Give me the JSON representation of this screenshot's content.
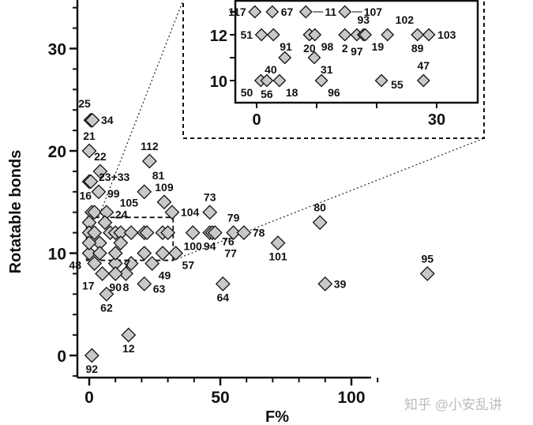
{
  "chart_data": {
    "type": "scatter",
    "xlabel": "F%",
    "ylabel": "Rotatable bonds",
    "xlim": [
      -3,
      140
    ],
    "ylim": [
      -2.2,
      34.8
    ],
    "xticks": [
      "0",
      "50",
      "100"
    ],
    "xtick_values": [
      0,
      50,
      100
    ],
    "yticks": [
      "0",
      "10",
      "20",
      "30"
    ],
    "ytick_values": [
      0,
      10,
      20,
      30
    ],
    "marker": "diamond",
    "marker_color": "#c8c8c8",
    "points": [
      {
        "x": 0.6,
        "y": 23,
        "label": "25",
        "side": "above-left"
      },
      {
        "x": 1.2,
        "y": 23,
        "label": "34",
        "side": "right"
      },
      {
        "x": 0,
        "y": 20,
        "label": "21",
        "side": "above"
      },
      {
        "x": 4.2,
        "y": 18,
        "label": "22",
        "side": "above"
      },
      {
        "x": 23,
        "y": 19,
        "label": "112",
        "side": "above"
      },
      {
        "x": 0,
        "y": 17,
        "label": "23+33",
        "side": "right-far"
      },
      {
        "x": 0.6,
        "y": 17,
        "label": "",
        "side": ""
      },
      {
        "x": 3.6,
        "y": 16,
        "label": "99",
        "side": "right"
      },
      {
        "x": 21,
        "y": 16,
        "label": "81",
        "side": "above-right"
      },
      {
        "x": 28.6,
        "y": 15,
        "label": "109",
        "side": "above"
      },
      {
        "x": 31.6,
        "y": 14,
        "label": "104",
        "side": "right"
      },
      {
        "x": 46,
        "y": 14,
        "label": "73",
        "side": "above"
      },
      {
        "x": 1,
        "y": 14,
        "label": "16",
        "side": "above-left"
      },
      {
        "x": 2,
        "y": 14,
        "label": "105",
        "side": "above-right"
      },
      {
        "x": 6.6,
        "y": 14,
        "label": "24",
        "side": "right"
      },
      {
        "x": 39.5,
        "y": 12,
        "label": "100",
        "side": "below"
      },
      {
        "x": 46,
        "y": 12,
        "label": "94",
        "side": "below"
      },
      {
        "x": 47,
        "y": 12,
        "label": "76",
        "side": "below-right"
      },
      {
        "x": 48,
        "y": 12,
        "label": "77",
        "side": "below-far"
      },
      {
        "x": 55,
        "y": 12,
        "label": "79",
        "side": "above"
      },
      {
        "x": 59,
        "y": 12,
        "label": "78",
        "side": "right"
      },
      {
        "x": 72,
        "y": 11,
        "label": "101",
        "side": "below"
      },
      {
        "x": 88,
        "y": 13,
        "label": "80",
        "side": "above"
      },
      {
        "x": 129,
        "y": 8,
        "label": "95",
        "side": "above"
      },
      {
        "x": 90,
        "y": 7,
        "label": "39",
        "side": "right"
      },
      {
        "x": 51,
        "y": 7,
        "label": "64",
        "side": "below"
      },
      {
        "x": 33,
        "y": 10,
        "label": "57",
        "side": "below-right"
      },
      {
        "x": 24,
        "y": 9,
        "label": "49",
        "side": "below-right"
      },
      {
        "x": 21,
        "y": 7,
        "label": "63",
        "side": "right"
      },
      {
        "x": 10,
        "y": 9,
        "label": "7",
        "side": "right"
      },
      {
        "x": 14,
        "y": 8,
        "label": "8",
        "side": "below"
      },
      {
        "x": 10,
        "y": 8,
        "label": "90",
        "side": "below"
      },
      {
        "x": 5,
        "y": 8,
        "label": "17",
        "side": "below-left"
      },
      {
        "x": 6.6,
        "y": 6,
        "label": "62",
        "side": "below"
      },
      {
        "x": 15,
        "y": 2,
        "label": "12",
        "side": "below"
      },
      {
        "x": 1,
        "y": 0,
        "label": "92",
        "side": "below"
      },
      {
        "x": 0,
        "y": 10,
        "label": "48",
        "side": "below-left"
      },
      {
        "x": 0,
        "y": 13,
        "label": "",
        "side": ""
      },
      {
        "x": 0,
        "y": 12,
        "label": "",
        "side": ""
      },
      {
        "x": 2,
        "y": 12,
        "label": "",
        "side": ""
      },
      {
        "x": 4,
        "y": 11,
        "label": "",
        "side": ""
      },
      {
        "x": 6,
        "y": 13,
        "label": "",
        "side": ""
      },
      {
        "x": 8,
        "y": 12,
        "label": "",
        "side": ""
      },
      {
        "x": 10,
        "y": 12,
        "label": "",
        "side": ""
      },
      {
        "x": 12,
        "y": 12,
        "label": "",
        "side": ""
      },
      {
        "x": 12,
        "y": 11,
        "label": "",
        "side": ""
      },
      {
        "x": 10,
        "y": 10,
        "label": "",
        "side": ""
      },
      {
        "x": 16,
        "y": 12,
        "label": "",
        "side": ""
      },
      {
        "x": 21,
        "y": 12,
        "label": "",
        "side": ""
      },
      {
        "x": 28,
        "y": 12,
        "label": "",
        "side": ""
      },
      {
        "x": 30,
        "y": 12,
        "label": "",
        "side": ""
      },
      {
        "x": 2,
        "y": 9,
        "label": "",
        "side": ""
      },
      {
        "x": 4,
        "y": 10,
        "label": "",
        "side": ""
      },
      {
        "x": 0,
        "y": 11,
        "label": "",
        "side": ""
      },
      {
        "x": 28,
        "y": 10,
        "label": "",
        "side": ""
      },
      {
        "x": 21,
        "y": 10,
        "label": "",
        "side": ""
      },
      {
        "x": 16,
        "y": 9,
        "label": "",
        "side": ""
      },
      {
        "x": 22,
        "y": 12,
        "label": "",
        "side": ""
      }
    ],
    "zoom_region": {
      "x": [
        -1,
        32
      ],
      "y": [
        9.3,
        13.5
      ]
    },
    "inset": {
      "xlim": [
        -3.5,
        37
      ],
      "ylim": [
        9.05,
        13.55
      ],
      "xticks": [
        "0",
        "30"
      ],
      "xtick_values": [
        0,
        30
      ],
      "minor_xticks": [
        10,
        20
      ],
      "yticks": [
        "10",
        "12"
      ],
      "ytick_values": [
        10,
        12
      ],
      "minor_yticks": [
        11,
        13
      ],
      "points": [
        {
          "x": -0.3,
          "y": 13,
          "label": "117",
          "side": "left"
        },
        {
          "x": 2.6,
          "y": 13,
          "label": "67",
          "side": "right"
        },
        {
          "x": 8.2,
          "y": 13,
          "label": "11",
          "side": "right-line"
        },
        {
          "x": 14.7,
          "y": 13,
          "label": "107",
          "side": "right-line"
        },
        {
          "x": 0.8,
          "y": 12,
          "label": "51",
          "side": "left"
        },
        {
          "x": 2.8,
          "y": 12,
          "label": "91",
          "side": "below-right"
        },
        {
          "x": 8.8,
          "y": 12,
          "label": "20",
          "side": "below"
        },
        {
          "x": 9.7,
          "y": 12,
          "label": "98",
          "side": "below-right"
        },
        {
          "x": 14.7,
          "y": 12,
          "label": "2",
          "side": "below-left"
        },
        {
          "x": 16.7,
          "y": 12,
          "label": "97",
          "side": "below"
        },
        {
          "x": 17.8,
          "y": 12,
          "label": "93",
          "side": "above"
        },
        {
          "x": 18.1,
          "y": 12,
          "label": "19",
          "side": "below-right"
        },
        {
          "x": 21.8,
          "y": 12,
          "label": "102",
          "side": "above-right"
        },
        {
          "x": 26.8,
          "y": 12,
          "label": "89",
          "side": "below"
        },
        {
          "x": 28.7,
          "y": 12,
          "label": "103",
          "side": "right"
        },
        {
          "x": 4.7,
          "y": 11,
          "label": "40",
          "side": "below-left"
        },
        {
          "x": 9.6,
          "y": 11,
          "label": "31",
          "side": "below-right"
        },
        {
          "x": 0.7,
          "y": 10,
          "label": "50",
          "side": "below-left"
        },
        {
          "x": 1.7,
          "y": 10,
          "label": "56",
          "side": "below"
        },
        {
          "x": 3.8,
          "y": 10,
          "label": "18",
          "side": "below-right"
        },
        {
          "x": 10.8,
          "y": 10,
          "label": "96",
          "side": "below-right"
        },
        {
          "x": 20.8,
          "y": 10,
          "label": "55",
          "side": "right-below"
        },
        {
          "x": 27.8,
          "y": 10,
          "label": "47",
          "side": "above"
        }
      ]
    }
  },
  "watermark": "知乎 @小安乱讲"
}
